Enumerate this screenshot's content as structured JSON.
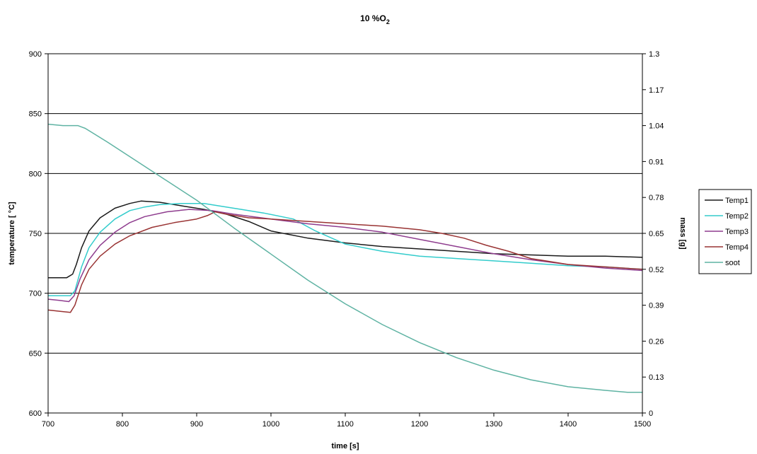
{
  "chart_data": {
    "type": "line",
    "title": "10 %O",
    "title_subscript": "2",
    "xlabel": "time [s]",
    "ylabel": "temperature [ °C]",
    "y2label": "mass [g]",
    "xlim": [
      700,
      1500
    ],
    "ylim": [
      600,
      900
    ],
    "y2lim": [
      0,
      1.3
    ],
    "x_ticks": [
      "700",
      "800",
      "900",
      "1000",
      "1100",
      "1200",
      "1300",
      "1400",
      "1500"
    ],
    "y_ticks": [
      "600",
      "650",
      "700",
      "750",
      "800",
      "850",
      "900"
    ],
    "y2_ticks": [
      "0",
      "0.13",
      "0.26",
      "0.39",
      "0.52",
      "0.65",
      "0.78",
      "0.91",
      "1.04",
      "1.17",
      "1.3"
    ],
    "grid": "horizontal",
    "legend_position": "right",
    "series": [
      {
        "name": "Temp1",
        "axis": "left",
        "color": "#1a1a1a",
        "points": [
          [
            700,
            713
          ],
          [
            710,
            713
          ],
          [
            725,
            713
          ],
          [
            733,
            716
          ],
          [
            738,
            724
          ],
          [
            745,
            738
          ],
          [
            755,
            752
          ],
          [
            770,
            763
          ],
          [
            790,
            771
          ],
          [
            810,
            775
          ],
          [
            825,
            777
          ],
          [
            850,
            776
          ],
          [
            880,
            773
          ],
          [
            910,
            770
          ],
          [
            940,
            766
          ],
          [
            970,
            760
          ],
          [
            1000,
            752
          ],
          [
            1050,
            746
          ],
          [
            1100,
            742
          ],
          [
            1150,
            739
          ],
          [
            1200,
            737
          ],
          [
            1250,
            735
          ],
          [
            1300,
            733
          ],
          [
            1350,
            732
          ],
          [
            1400,
            731
          ],
          [
            1450,
            731
          ],
          [
            1500,
            730
          ]
        ]
      },
      {
        "name": "Temp2",
        "axis": "left",
        "color": "#33cccc",
        "points": [
          [
            700,
            698
          ],
          [
            715,
            698
          ],
          [
            730,
            698
          ],
          [
            736,
            702
          ],
          [
            745,
            722
          ],
          [
            755,
            738
          ],
          [
            770,
            751
          ],
          [
            790,
            762
          ],
          [
            810,
            769
          ],
          [
            830,
            772
          ],
          [
            850,
            774
          ],
          [
            880,
            775
          ],
          [
            910,
            775
          ],
          [
            930,
            773
          ],
          [
            960,
            770
          ],
          [
            990,
            767
          ],
          [
            1030,
            762
          ],
          [
            1060,
            752
          ],
          [
            1100,
            741
          ],
          [
            1150,
            735
          ],
          [
            1200,
            731
          ],
          [
            1250,
            729
          ],
          [
            1300,
            727
          ],
          [
            1350,
            725
          ],
          [
            1400,
            723
          ],
          [
            1450,
            722
          ],
          [
            1500,
            720
          ]
        ]
      },
      {
        "name": "Temp3",
        "axis": "left",
        "color": "#8e3c8e",
        "points": [
          [
            700,
            695
          ],
          [
            715,
            694
          ],
          [
            728,
            693
          ],
          [
            735,
            698
          ],
          [
            743,
            712
          ],
          [
            755,
            728
          ],
          [
            770,
            740
          ],
          [
            790,
            751
          ],
          [
            810,
            759
          ],
          [
            830,
            764
          ],
          [
            860,
            768
          ],
          [
            890,
            770
          ],
          [
            920,
            769
          ],
          [
            950,
            766
          ],
          [
            1000,
            762
          ],
          [
            1050,
            758
          ],
          [
            1100,
            755
          ],
          [
            1150,
            751
          ],
          [
            1200,
            745
          ],
          [
            1250,
            739
          ],
          [
            1300,
            733
          ],
          [
            1350,
            728
          ],
          [
            1400,
            724
          ],
          [
            1450,
            721
          ],
          [
            1500,
            719
          ]
        ]
      },
      {
        "name": "Temp4",
        "axis": "left",
        "color": "#993333",
        "points": [
          [
            700,
            686
          ],
          [
            715,
            685
          ],
          [
            730,
            684
          ],
          [
            736,
            690
          ],
          [
            745,
            707
          ],
          [
            755,
            720
          ],
          [
            770,
            731
          ],
          [
            790,
            741
          ],
          [
            810,
            748
          ],
          [
            840,
            755
          ],
          [
            870,
            759
          ],
          [
            900,
            762
          ],
          [
            915,
            765
          ],
          [
            925,
            768
          ],
          [
            940,
            766
          ],
          [
            970,
            763
          ],
          [
            1000,
            762
          ],
          [
            1050,
            760
          ],
          [
            1100,
            758
          ],
          [
            1150,
            756
          ],
          [
            1200,
            753
          ],
          [
            1230,
            750
          ],
          [
            1260,
            746
          ],
          [
            1290,
            740
          ],
          [
            1320,
            735
          ],
          [
            1350,
            729
          ],
          [
            1400,
            724
          ],
          [
            1450,
            722
          ],
          [
            1500,
            720
          ]
        ]
      },
      {
        "name": "soot",
        "axis": "right",
        "color": "#5fb3a3",
        "points": [
          [
            700,
            1.045
          ],
          [
            720,
            1.04
          ],
          [
            740,
            1.04
          ],
          [
            745,
            1.035
          ],
          [
            750,
            1.03
          ],
          [
            780,
            0.98
          ],
          [
            820,
            0.91
          ],
          [
            860,
            0.84
          ],
          [
            900,
            0.77
          ],
          [
            950,
            0.67
          ],
          [
            1000,
            0.575
          ],
          [
            1050,
            0.48
          ],
          [
            1100,
            0.395
          ],
          [
            1150,
            0.32
          ],
          [
            1200,
            0.255
          ],
          [
            1250,
            0.2
          ],
          [
            1300,
            0.155
          ],
          [
            1350,
            0.12
          ],
          [
            1400,
            0.095
          ],
          [
            1450,
            0.082
          ],
          [
            1480,
            0.075
          ],
          [
            1500,
            0.075
          ]
        ]
      }
    ]
  }
}
